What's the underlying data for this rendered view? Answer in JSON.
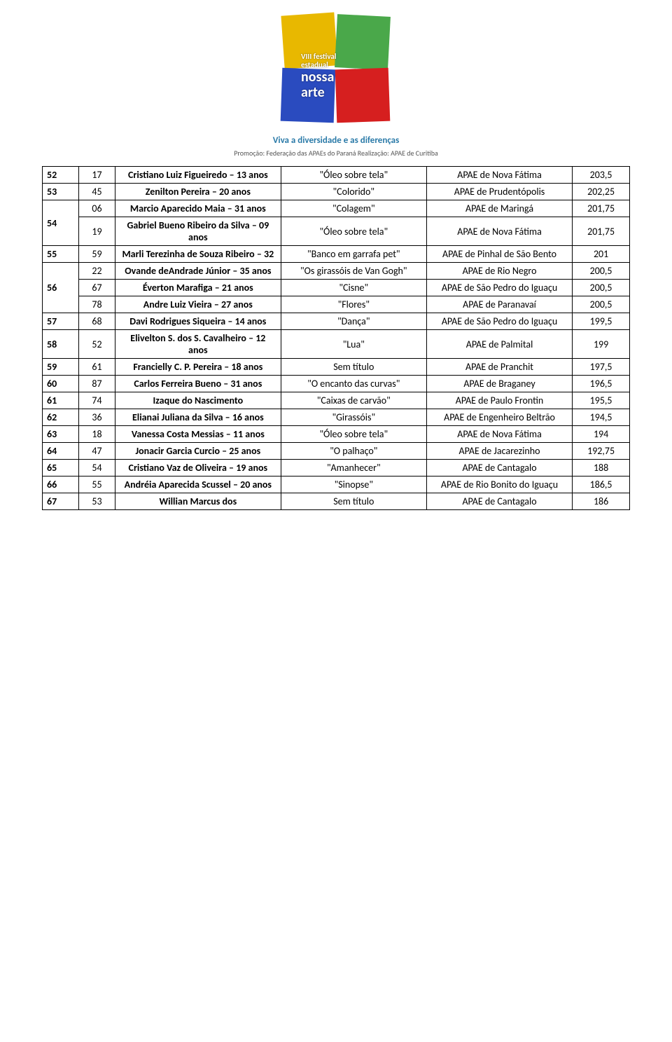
{
  "header": {
    "logo_text_top": "VIII festival",
    "logo_text_mid": "estadual",
    "logo_text_big": "nossa",
    "logo_text_big2": "arte",
    "logo_colors": {
      "tl": "#e8b800",
      "tr": "#4aa84a",
      "bl": "#2a4bbf",
      "br": "#d61f1f"
    },
    "tagline": "Viva a diversidade e as diferenças",
    "promo": "Promoção: Federação das APAEs do Paraná   Realização: APAE de Curitiba"
  },
  "table": {
    "colors": {
      "border": "#000000",
      "text": "#000000",
      "bg": "#ffffff"
    },
    "fontsize": 14,
    "rows": [
      {
        "rank": "52",
        "subrows": [
          {
            "num": "17",
            "name": "Cristiano Luiz Figueiredo – 13 anos",
            "title": "\"Óleo sobre tela\"",
            "apae": "APAE de Nova Fátima",
            "score": "203,5"
          }
        ]
      },
      {
        "rank": "53",
        "subrows": [
          {
            "num": "45",
            "name": "Zenilton Pereira – 20 anos",
            "title": "\"Colorido\"",
            "apae": "APAE de Prudentópolis",
            "score": "202,25"
          }
        ]
      },
      {
        "rank": "54",
        "subrows": [
          {
            "num": "06",
            "name": "Marcio Aparecido Maia – 31 anos",
            "title": "\"Colagem\"",
            "apae": "APAE de Maringá",
            "score": "201,75"
          },
          {
            "num": "19",
            "name": "Gabriel Bueno Ribeiro da Silva – 09 anos",
            "title": "\"Óleo sobre tela\"",
            "apae": "APAE de Nova Fátima",
            "score": "201,75"
          }
        ]
      },
      {
        "rank": "55",
        "subrows": [
          {
            "num": "59",
            "name": "Marli Terezinha de Souza Ribeiro – 32",
            "title": "\"Banco em garrafa pet\"",
            "apae": "APAE de Pinhal de São Bento",
            "score": "201"
          }
        ]
      },
      {
        "rank": "56",
        "subrows": [
          {
            "num": "22",
            "name": "Ovande deAndrade Júnior – 35 anos",
            "title": "\"Os girassóis de Van Gogh\"",
            "apae": "APAE de Rio Negro",
            "score": "200,5"
          },
          {
            "num": "67",
            "name": "Éverton Marafiga – 21 anos",
            "title": "\"Cisne\"",
            "apae": "APAE de São Pedro do Iguaçu",
            "score": "200,5"
          },
          {
            "num": "78",
            "name": "Andre Luiz Vieira – 27 anos",
            "title": "\"Flores\"",
            "apae": "APAE de Paranavaí",
            "score": "200,5"
          }
        ]
      },
      {
        "rank": "57",
        "subrows": [
          {
            "num": "68",
            "name": "Davi Rodrigues Siqueira – 14 anos",
            "title": "\"Dança\"",
            "apae": "APAE de São Pedro do Iguaçu",
            "score": "199,5"
          }
        ]
      },
      {
        "rank": "58",
        "subrows": [
          {
            "num": "52",
            "name": "Elivelton S. dos S. Cavalheiro – 12 anos",
            "title": "\"Lua\"",
            "apae": "APAE de Palmital",
            "score": "199"
          }
        ]
      },
      {
        "rank": "59",
        "subrows": [
          {
            "num": "61",
            "name": "Francielly C. P. Pereira – 18 anos",
            "title": "Sem título",
            "apae": "APAE de Pranchit",
            "score": "197,5"
          }
        ]
      },
      {
        "rank": "60",
        "subrows": [
          {
            "num": "87",
            "name": "Carlos Ferreira Bueno – 31 anos",
            "title": "\"O encanto das curvas\"",
            "apae": "APAE de Braganey",
            "score": "196,5"
          }
        ]
      },
      {
        "rank": "61",
        "subrows": [
          {
            "num": "74",
            "name": "Izaque do Nascimento",
            "title": "\"Caixas de carvão\"",
            "apae": "APAE de Paulo Frontin",
            "score": "195,5"
          }
        ]
      },
      {
        "rank": "62",
        "subrows": [
          {
            "num": "36",
            "name": "Elianai Juliana da Silva – 16 anos",
            "title": "\"Girassóis\"",
            "apae": "APAE de Engenheiro Beltrão",
            "score": "194,5"
          }
        ]
      },
      {
        "rank": "63",
        "subrows": [
          {
            "num": "18",
            "name": "Vanessa Costa Messias – 11 anos",
            "title": "\"Óleo sobre tela\"",
            "apae": "APAE de Nova Fátima",
            "score": "194"
          }
        ]
      },
      {
        "rank": "64",
        "subrows": [
          {
            "num": "47",
            "name": "Jonacir Garcia Curcio – 25 anos",
            "title": "\"O palhaço\"",
            "apae": "APAE de Jacarezinho",
            "score": "192,75"
          }
        ]
      },
      {
        "rank": "65",
        "subrows": [
          {
            "num": "54",
            "name": "Cristiano Vaz de Oliveira – 19 anos",
            "title": "\"Amanhecer\"",
            "apae": "APAE de Cantagalo",
            "score": "188"
          }
        ]
      },
      {
        "rank": "66",
        "subrows": [
          {
            "num": "55",
            "name": "Andréia Aparecida Scussel – 20 anos",
            "title": "\"Sinopse\"",
            "apae": "APAE de Rio Bonito do Iguaçu",
            "score": "186,5"
          }
        ]
      },
      {
        "rank": "67",
        "subrows": [
          {
            "num": "53",
            "name": "Willian Marcus dos",
            "title": "Sem título",
            "apae": "APAE de Cantagalo",
            "score": "186"
          }
        ]
      }
    ]
  }
}
